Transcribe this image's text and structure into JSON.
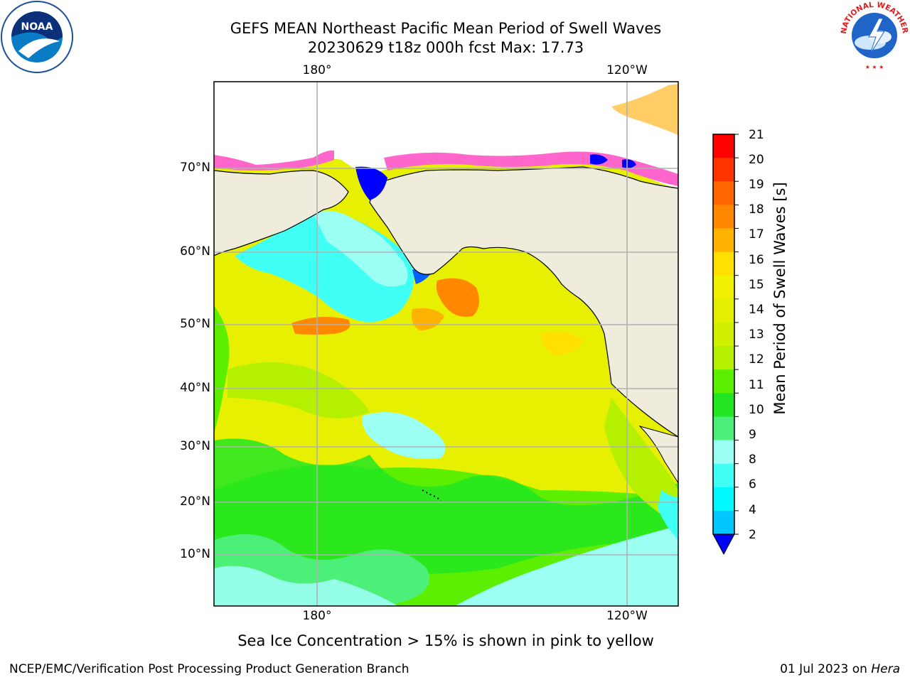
{
  "header": {
    "title_line1": "GEFS MEAN Northeast Pacific Mean Period of Swell Waves",
    "title_line2": "20230629 t18z 000h fcst   Max: 17.73"
  },
  "map": {
    "lon_labels": [
      "180°",
      "120°W"
    ],
    "lat_labels": [
      "70°N",
      "60°N",
      "50°N",
      "40°N",
      "30°N",
      "20°N",
      "10°N"
    ],
    "note": "Sea Ice Concentration > 15% is shown in pink to yellow"
  },
  "colorbar": {
    "label": "Mean Period of Swell Waves [s]",
    "ticks": [
      "21",
      "20",
      "19",
      "18",
      "17",
      "16",
      "15",
      "14",
      "13",
      "12",
      "11",
      "10",
      "9",
      "8",
      "6",
      "4",
      "2"
    ],
    "colors": [
      "#ff0000",
      "#ff3300",
      "#ff6600",
      "#ff8800",
      "#ffb300",
      "#ffe000",
      "#f0f000",
      "#e2f000",
      "#d0f000",
      "#b4f000",
      "#5cf000",
      "#22e622",
      "#4cf078",
      "#9cfff4",
      "#40fff4",
      "#00f8ff",
      "#00c8ff",
      "#0060ff"
    ]
  },
  "logos": {
    "left": "NOAA",
    "right": "NATIONAL WEATHER SERVICE"
  },
  "footer": {
    "left": "NCEP/EMC/Verification Post Processing Product Generation Branch",
    "right_date": "01 Jul 2023 on ",
    "right_host": "Hera"
  }
}
